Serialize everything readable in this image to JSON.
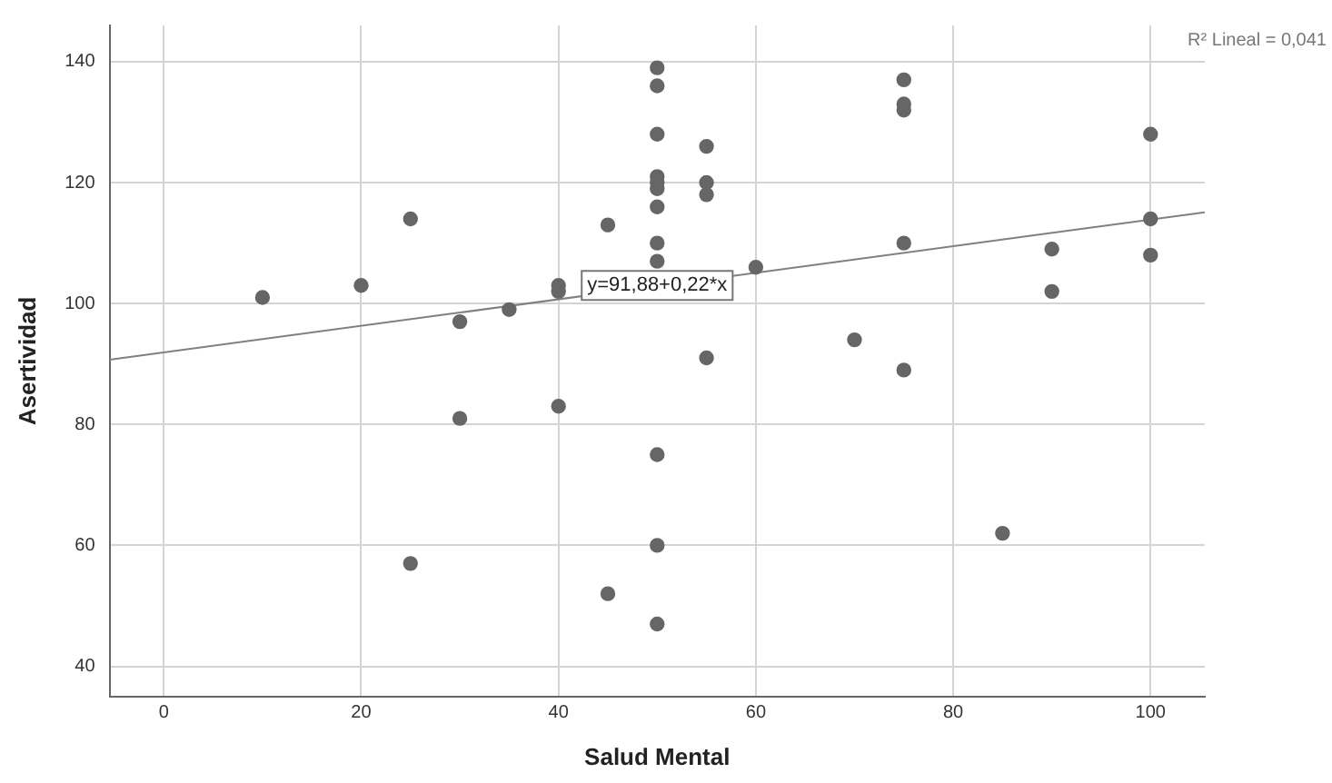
{
  "chart_data": {
    "type": "scatter",
    "xlabel": "Salud Mental",
    "ylabel": "Asertividad",
    "xlim": [
      -5.5,
      105.5
    ],
    "ylim": [
      35,
      146
    ],
    "xticks": [
      0,
      20,
      40,
      60,
      80,
      100
    ],
    "yticks": [
      40,
      60,
      80,
      100,
      120,
      140
    ],
    "grid": true,
    "legend": false,
    "series": [
      {
        "marker": "circle",
        "color": "#666666",
        "x": [
          10,
          20,
          25,
          25,
          30,
          30,
          35,
          40,
          40,
          40,
          45,
          45,
          50,
          50,
          50,
          50,
          50,
          50,
          50,
          50,
          50,
          50,
          50,
          50,
          55,
          55,
          55,
          55,
          60,
          70,
          75,
          75,
          75,
          75,
          75,
          85,
          90,
          90,
          100,
          100,
          100
        ],
        "values": [
          101,
          103,
          114,
          57,
          97,
          81,
          99,
          103,
          102,
          83,
          113,
          52,
          139,
          136,
          128,
          121,
          120,
          119,
          116,
          110,
          107,
          75,
          60,
          47,
          126,
          120,
          118,
          91,
          106,
          94,
          137,
          133,
          132,
          110,
          89,
          62,
          109,
          102,
          128,
          114,
          108
        ]
      },
      {
        "type": "line",
        "marker": "none",
        "color": "#808080",
        "x": [
          -5.5,
          105.5
        ],
        "values": [
          90.7,
          115.1
        ]
      }
    ],
    "annotations": [
      {
        "text": "y=91,88+0,22*x",
        "x": 50,
        "y": 103
      },
      "R² Lineal = 0,041"
    ]
  }
}
